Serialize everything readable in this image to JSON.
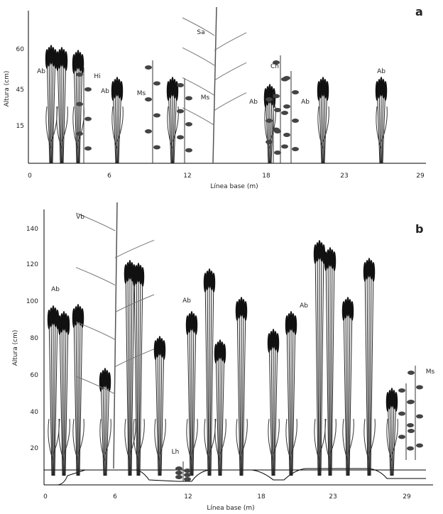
{
  "panel_a": {
    "letter": "a",
    "y_label": "Altura (cm)",
    "x_label": "Línea base (m)",
    "yticks": [
      "60",
      "45",
      "15"
    ],
    "xticks": [
      "0",
      "6",
      "12",
      "18",
      "23",
      "29"
    ],
    "plant_labels": [
      "Ab",
      "Hi",
      "Ab",
      "Ms",
      "Sa",
      "Ms",
      "Ch",
      "Ab",
      "Ab",
      "Ab"
    ]
  },
  "panel_b": {
    "letter": "b",
    "y_label": "Altura (cm)",
    "x_label": "Línea base (m)",
    "yticks": [
      "140",
      "120",
      "100",
      "80",
      "60",
      "40",
      "20"
    ],
    "xticks": [
      "0",
      "6",
      "12",
      "18",
      "23",
      "29"
    ],
    "plant_labels": [
      "Vb",
      "Ab",
      "Ab",
      "Ab",
      "Lh",
      "Ms"
    ]
  }
}
